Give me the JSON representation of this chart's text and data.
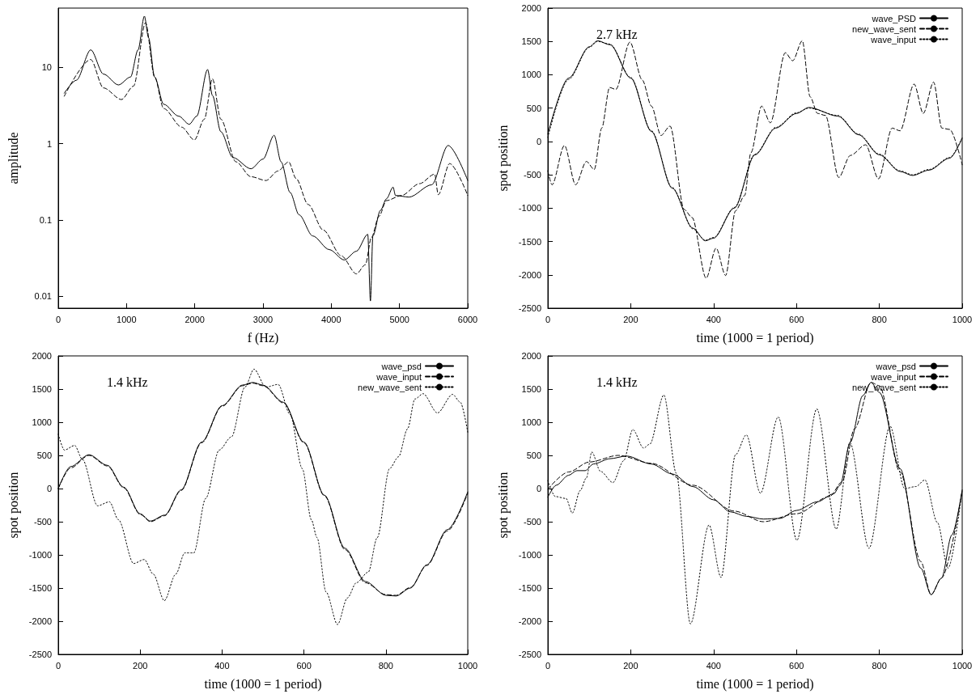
{
  "chart_data": [
    {
      "type": "line",
      "xlabel": "f (Hz)",
      "ylabel": "amplitude",
      "log": "y",
      "xlim": [
        0,
        6000
      ],
      "xticks": [
        0,
        1000,
        2000,
        3000,
        4000,
        5000,
        6000
      ],
      "ylim": [
        0.007,
        60
      ],
      "yticks": [
        0.01,
        0.1,
        1,
        10
      ],
      "grid": false,
      "marker": "none",
      "series": [
        {
          "color": "#000000",
          "line_style": "solid",
          "x": [
            88,
            265,
            476,
            662,
            882,
            1059,
            1169,
            1262,
            1323,
            1412,
            1544,
            1765,
            1919,
            2029,
            2188,
            2259,
            2382,
            2559,
            2824,
            3000,
            3163,
            3265,
            3397,
            3529,
            3728,
            3971,
            4191,
            4368,
            4535,
            4574,
            4610,
            4721,
            4809,
            4906,
            4941,
            5140,
            5471,
            5713,
            6000
          ],
          "values": [
            4.6,
            6.8,
            17,
            8.2,
            5.9,
            7.5,
            17,
            47,
            24.5,
            7.5,
            3.3,
            2.3,
            1.8,
            2.3,
            9.4,
            4.3,
            1.44,
            0.66,
            0.47,
            0.63,
            1.29,
            0.58,
            0.23,
            0.117,
            0.062,
            0.041,
            0.03,
            0.039,
            0.065,
            0.0087,
            0.062,
            0.134,
            0.19,
            0.27,
            0.21,
            0.2,
            0.29,
            0.95,
            0.33
          ]
        },
        {
          "color": "#000000",
          "line_style": "dashed",
          "x": [
            88,
            476,
            662,
            926,
            1103,
            1279,
            1412,
            1544,
            1809,
            1994,
            2140,
            2259,
            2382,
            2603,
            2824,
            3044,
            3221,
            3375,
            3485,
            3662,
            3882,
            4147,
            4368,
            4500,
            4588,
            4699,
            4809,
            5029,
            5294,
            5515,
            5568,
            5735,
            6000
          ],
          "values": [
            4.2,
            12.7,
            5.4,
            3.8,
            5.7,
            38.6,
            7.5,
            2.9,
            1.65,
            1.12,
            2.1,
            7.1,
            2.1,
            0.58,
            0.37,
            0.33,
            0.44,
            0.58,
            0.35,
            0.16,
            0.074,
            0.034,
            0.0197,
            0.026,
            0.059,
            0.112,
            0.18,
            0.21,
            0.3,
            0.4,
            0.215,
            0.55,
            0.21
          ]
        }
      ]
    },
    {
      "type": "line",
      "xlabel": "time (1000 = 1 period)",
      "ylabel": "spot position",
      "annotations": [
        "2.7 kHz"
      ],
      "xlim": [
        0,
        1000
      ],
      "xticks": [
        0,
        200,
        400,
        600,
        800,
        1000
      ],
      "ylim": [
        -2500,
        2000
      ],
      "yticks": [
        -2500,
        -2000,
        -1500,
        -1000,
        -500,
        0,
        500,
        1000,
        1500,
        2000
      ],
      "grid": false,
      "marker": "none",
      "legend": "top right",
      "series": [
        {
          "name": "wave_PSD",
          "color": "#000000",
          "line_style": "solid",
          "x": [
            0,
            50,
            100,
            120,
            150,
            200,
            250,
            300,
            350,
            380,
            400,
            450,
            500,
            550,
            600,
            630,
            700,
            750,
            800,
            850,
            880,
            920,
            970,
            1000
          ],
          "values": [
            110,
            950,
            1420,
            1510,
            1450,
            950,
            150,
            -700,
            -1300,
            -1490,
            -1450,
            -1000,
            -200,
            200,
            420,
            510,
            380,
            100,
            -200,
            -450,
            -510,
            -430,
            -250,
            50
          ]
        },
        {
          "name": "new_wave_sent",
          "color": "#000000",
          "line_style": "dashed",
          "x": [
            0,
            10,
            40,
            67,
            93,
            112,
            130,
            149,
            164,
            198,
            228,
            250,
            273,
            295,
            329,
            348,
            382,
            406,
            429,
            453,
            475,
            490,
            516,
            537,
            573,
            591,
            614,
            633,
            651,
            670,
            702,
            730,
            767,
            798,
            831,
            850,
            884,
            906,
            931,
            951,
            970,
            1000
          ],
          "values": [
            -440,
            -650,
            -60,
            -650,
            -300,
            -420,
            200,
            810,
            780,
            1490,
            920,
            530,
            90,
            230,
            -1020,
            -1140,
            -2050,
            -1600,
            -2010,
            -1040,
            -810,
            -170,
            530,
            280,
            1330,
            1210,
            1510,
            670,
            420,
            390,
            -540,
            -210,
            -50,
            -560,
            200,
            160,
            860,
            420,
            890,
            200,
            180,
            -350
          ]
        },
        {
          "name": "wave_input",
          "color": "#000000",
          "line_style": "dotted",
          "x": [
            0,
            50,
            100,
            120,
            150,
            200,
            250,
            300,
            350,
            380,
            400,
            450,
            500,
            550,
            600,
            630,
            700,
            750,
            800,
            850,
            880,
            920,
            970,
            1000
          ],
          "values": [
            60,
            930,
            1410,
            1500,
            1460,
            960,
            160,
            -690,
            -1310,
            -1480,
            -1440,
            -990,
            -190,
            210,
            430,
            500,
            390,
            110,
            -190,
            -440,
            -500,
            -420,
            -240,
            60
          ]
        }
      ]
    },
    {
      "type": "line",
      "xlabel": "time (1000 = 1 period)",
      "ylabel": "spot position",
      "annotations": [
        "1.4 kHz"
      ],
      "xlim": [
        0,
        1000
      ],
      "xticks": [
        0,
        200,
        400,
        600,
        800,
        1000
      ],
      "ylim": [
        -2500,
        2000
      ],
      "yticks": [
        -2500,
        -2000,
        -1500,
        -1000,
        -500,
        0,
        500,
        1000,
        1500,
        2000
      ],
      "grid": false,
      "marker": "none",
      "legend": "top right",
      "series": [
        {
          "name": "wave_psd",
          "color": "#000000",
          "line_style": "solid",
          "x": [
            0,
            30,
            75,
            120,
            160,
            200,
            225,
            260,
            300,
            350,
            400,
            450,
            475,
            500,
            550,
            600,
            650,
            700,
            750,
            800,
            825,
            860,
            900,
            950,
            1000
          ],
          "values": [
            0,
            330,
            510,
            350,
            20,
            -380,
            -490,
            -400,
            -20,
            700,
            1250,
            1560,
            1600,
            1560,
            1300,
            700,
            -100,
            -900,
            -1400,
            -1610,
            -1620,
            -1500,
            -1150,
            -620,
            -50
          ]
        },
        {
          "name": "wave_input",
          "color": "#000000",
          "line_style": "dashed",
          "x": [
            0,
            30,
            75,
            120,
            160,
            200,
            225,
            260,
            300,
            350,
            400,
            450,
            475,
            500,
            550,
            600,
            650,
            700,
            750,
            800,
            825,
            860,
            900,
            950,
            1000
          ],
          "values": [
            0,
            310,
            500,
            340,
            10,
            -390,
            -500,
            -410,
            -30,
            690,
            1240,
            1550,
            1590,
            1550,
            1290,
            690,
            -110,
            -920,
            -1420,
            -1600,
            -1610,
            -1490,
            -1160,
            -640,
            -70
          ]
        },
        {
          "name": "new_wave_sent",
          "color": "#000000",
          "line_style": "dotted",
          "x": [
            0,
            15,
            40,
            59,
            96,
            125,
            147,
            184,
            210,
            232,
            259,
            287,
            309,
            331,
            360,
            393,
            423,
            456,
            478,
            507,
            537,
            566,
            596,
            618,
            632,
            654,
            682,
            706,
            728,
            757,
            779,
            809,
            831,
            853,
            871,
            891,
            926,
            963,
            982,
            1000
          ],
          "values": [
            820,
            580,
            650,
            440,
            -260,
            -200,
            -470,
            -1130,
            -1070,
            -1290,
            -1690,
            -1290,
            -970,
            -970,
            -150,
            580,
            780,
            1530,
            1800,
            1530,
            1570,
            1120,
            300,
            -470,
            -740,
            -1560,
            -2050,
            -1650,
            -1420,
            -1260,
            -740,
            300,
            480,
            900,
            1350,
            1430,
            1140,
            1420,
            1300,
            850
          ]
        }
      ]
    },
    {
      "type": "line",
      "xlabel": "time (1000 = 1 period)",
      "ylabel": "spot position",
      "annotations": [
        "1.4 kHz"
      ],
      "xlim": [
        0,
        1000
      ],
      "xticks": [
        0,
        200,
        400,
        600,
        800,
        1000
      ],
      "ylim": [
        -2500,
        2000
      ],
      "yticks": [
        -2500,
        -2000,
        -1500,
        -1000,
        -500,
        0,
        500,
        1000,
        1500,
        2000
      ],
      "grid": false,
      "marker": "none",
      "legend": "top right",
      "series": [
        {
          "name": "wave_psd",
          "color": "#000000",
          "line_style": "solid",
          "x": [
            0,
            20,
            50,
            70,
            90,
            110,
            150,
            190,
            250,
            300,
            350,
            400,
            440,
            480,
            520,
            560,
            600,
            650,
            690,
            705,
            730,
            760,
            780,
            800,
            850,
            900,
            925,
            950,
            975,
            1000
          ],
          "values": [
            -130,
            50,
            200,
            270,
            270,
            370,
            450,
            490,
            370,
            220,
            30,
            -170,
            -350,
            -420,
            -460,
            -450,
            -330,
            -200,
            -80,
            50,
            700,
            1400,
            1600,
            1450,
            300,
            -1200,
            -1600,
            -1350,
            -700,
            -20
          ]
        },
        {
          "name": "wave_input",
          "color": "#000000",
          "line_style": "dashed",
          "x": [
            0,
            50,
            100,
            170,
            250,
            350,
            450,
            520,
            600,
            680,
            710,
            740,
            780,
            800,
            850,
            900,
            925,
            950,
            1000
          ],
          "values": [
            -10,
            250,
            400,
            500,
            380,
            50,
            -340,
            -500,
            -380,
            -120,
            100,
            900,
            1600,
            1550,
            250,
            -1100,
            -1600,
            -1350,
            -30
          ]
        },
        {
          "name": "new_wave_sent",
          "color": "#000000",
          "line_style": "dotted",
          "x": [
            0,
            18,
            44,
            59,
            78,
            93,
            106,
            127,
            157,
            183,
            205,
            231,
            246,
            280,
            310,
            344,
            389,
            418,
            453,
            479,
            513,
            556,
            601,
            649,
            696,
            729,
            775,
            826,
            861,
            888,
            910,
            940,
            966,
            1000
          ],
          "values": [
            120,
            -120,
            -150,
            -370,
            -30,
            160,
            550,
            260,
            90,
            420,
            890,
            610,
            670,
            1410,
            230,
            -2040,
            -550,
            -1340,
            510,
            810,
            -70,
            1080,
            -780,
            1200,
            -610,
            690,
            -900,
            940,
            0,
            30,
            130,
            -510,
            -1200,
            -20
          ]
        }
      ]
    }
  ]
}
